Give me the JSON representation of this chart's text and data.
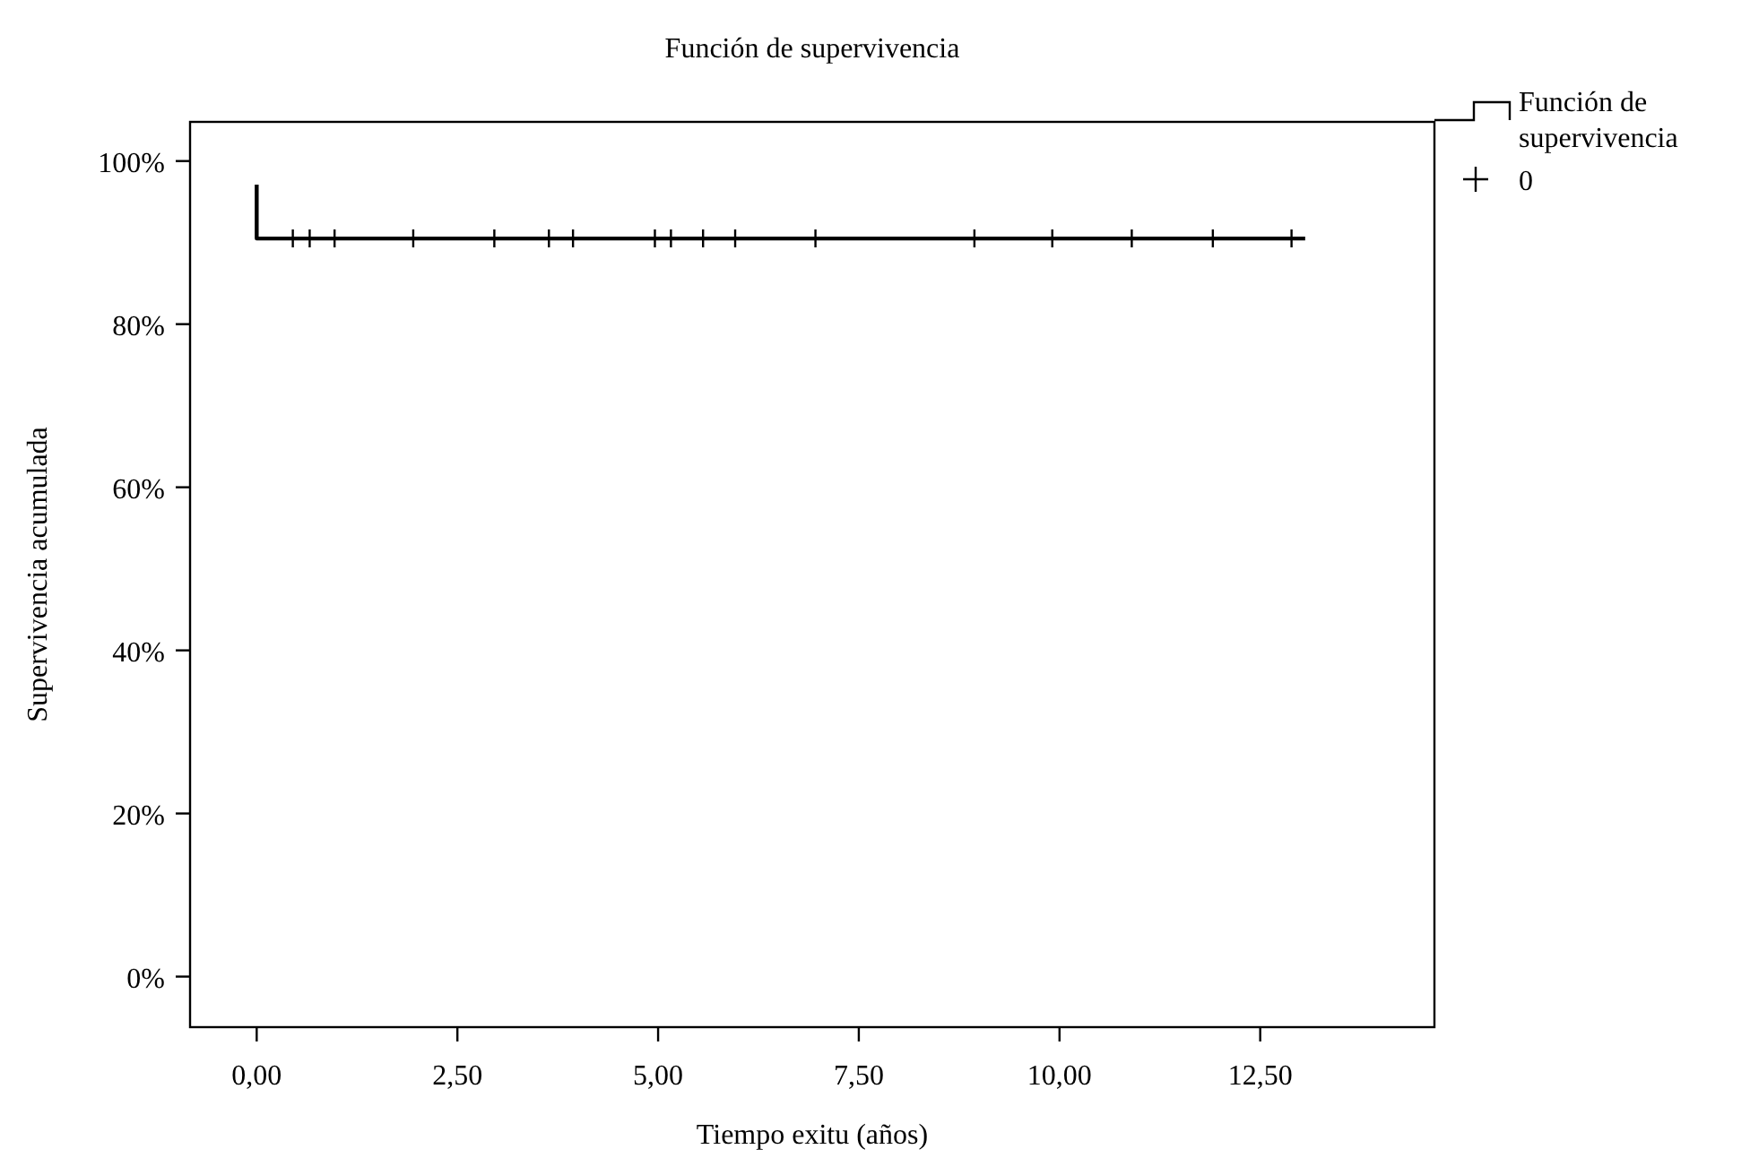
{
  "chart_data": {
    "type": "step",
    "title": "Función de supervivencia",
    "xlabel": "Tiempo exitu (años)",
    "ylabel": "Supervivencia acumulada",
    "xlim": [
      -0.83,
      14.67
    ],
    "ylim": [
      -6.2,
      104.8
    ],
    "xticks": [
      {
        "value": 0,
        "label": "0,00"
      },
      {
        "value": 2.5,
        "label": "2,50"
      },
      {
        "value": 5,
        "label": "5,00"
      },
      {
        "value": 7.5,
        "label": "7,50"
      },
      {
        "value": 10,
        "label": "10,00"
      },
      {
        "value": 12.5,
        "label": "12,50"
      }
    ],
    "yticks": [
      {
        "value": 0,
        "label": "0%"
      },
      {
        "value": 20,
        "label": "20%"
      },
      {
        "value": 40,
        "label": "40%"
      },
      {
        "value": 60,
        "label": "60%"
      },
      {
        "value": 80,
        "label": "80%"
      },
      {
        "value": 100,
        "label": "100%"
      }
    ],
    "grid": false,
    "legend": "top right",
    "series": [
      {
        "name": "Función de supervivencia",
        "color": "#000000",
        "x": [
          0,
          0,
          13.06
        ],
        "values": [
          97.1,
          90.5,
          90.5
        ]
      },
      {
        "name": "0",
        "type": "scatter",
        "marker": "cross",
        "color": "#000000",
        "x": [
          0.45,
          0.66,
          0.97,
          1.95,
          2.96,
          3.64,
          3.94,
          4.96,
          5.16,
          5.56,
          5.96,
          6.96,
          8.94,
          9.91,
          10.9,
          11.91,
          12.89
        ],
        "values": [
          90.5,
          90.5,
          90.5,
          90.5,
          90.5,
          90.5,
          90.5,
          90.5,
          90.5,
          90.5,
          90.5,
          90.5,
          90.5,
          90.5,
          90.5,
          90.5,
          90.5
        ]
      }
    ]
  }
}
